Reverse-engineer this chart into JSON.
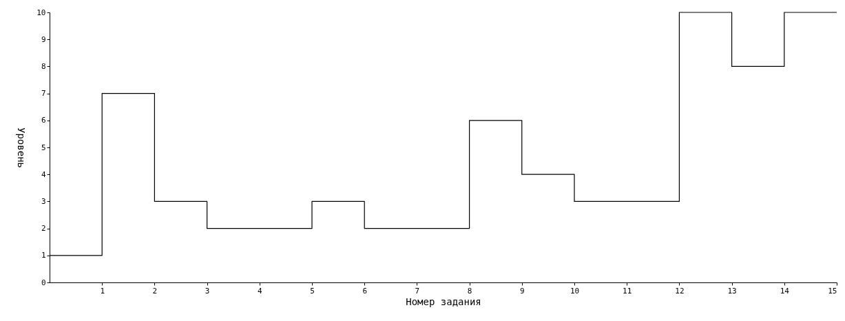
{
  "chart_data": {
    "type": "step",
    "xlabel": "Номер задания",
    "ylabel": "Уровень",
    "x": [
      0,
      1,
      2,
      3,
      4,
      5,
      6,
      7,
      8,
      9,
      10,
      11,
      12,
      13,
      14,
      15
    ],
    "series": [
      {
        "color": "#000000",
        "values": [
          1,
          7,
          3,
          2,
          2,
          3,
          2,
          2,
          6,
          4,
          3,
          3,
          10,
          8,
          10,
          10
        ]
      }
    ],
    "xlim": [
      0,
      15
    ],
    "xticks": [
      1,
      2,
      3,
      4,
      5,
      6,
      7,
      8,
      9,
      10,
      11,
      12,
      13,
      14,
      15
    ],
    "ylim": [
      0,
      10
    ],
    "yticks": [
      0,
      1,
      2,
      3,
      4,
      5,
      6,
      7,
      8,
      9,
      10
    ],
    "grid": false,
    "marker": "none",
    "line_style": "solid"
  }
}
